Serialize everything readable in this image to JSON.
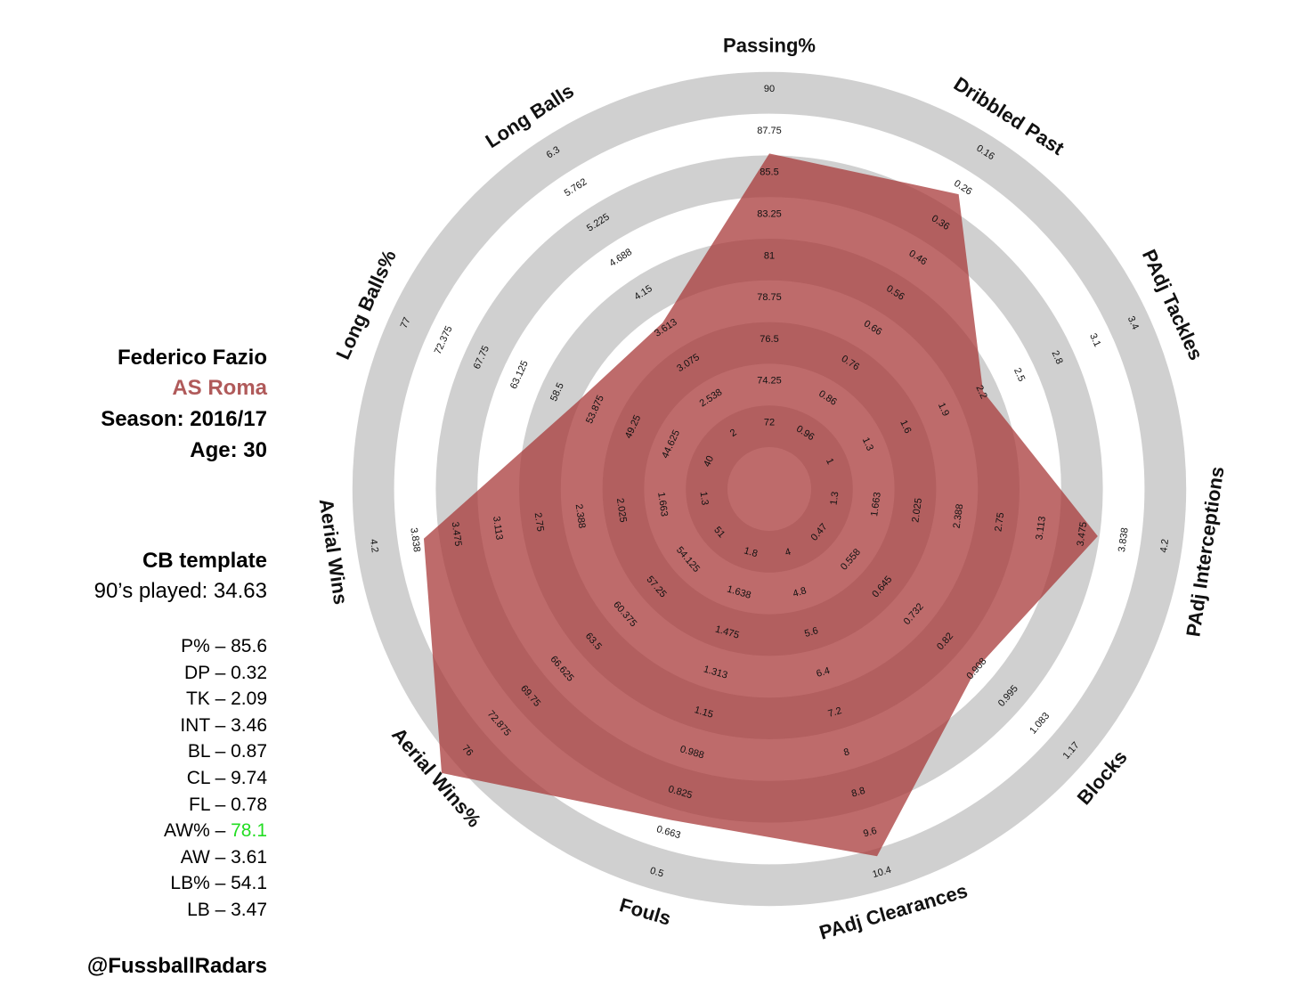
{
  "player": {
    "name": "Federico Fazio",
    "team": "AS Roma",
    "season": "Season: 2016/17",
    "age": "Age: 30",
    "template": "CB template",
    "nineties": "90’s played: 34.63",
    "handle": "@FussballRadars"
  },
  "stats": [
    {
      "label": "P% – ",
      "value": "85.6",
      "color": "#000000"
    },
    {
      "label": "DP – ",
      "value": "0.32",
      "color": "#000000"
    },
    {
      "label": "TK – ",
      "value": "2.09",
      "color": "#000000"
    },
    {
      "label": "INT – ",
      "value": "3.46",
      "color": "#000000"
    },
    {
      "label": "BL – ",
      "value": "0.87",
      "color": "#000000"
    },
    {
      "label": "CL – ",
      "value": "9.74",
      "color": "#000000"
    },
    {
      "label": "FL – ",
      "value": "0.78",
      "color": "#000000"
    },
    {
      "label": "AW% – ",
      "value": "78.1",
      "color": "#22dd22"
    },
    {
      "label": "AW – ",
      "value": "3.61",
      "color": "#000000"
    },
    {
      "label": "LB% – ",
      "value": "54.1",
      "color": "#000000"
    },
    {
      "label": "LB – ",
      "value": "3.47",
      "color": "#000000"
    }
  ],
  "colors": {
    "fill": "#a83a3a",
    "ring_light": "#d0d0d0",
    "ring_dark": "#a8a8a8",
    "team": "#b05a5a"
  },
  "chart_data": {
    "type": "radar",
    "axes": [
      {
        "label": "Passing%",
        "ticks": [
          "72",
          "74.25",
          "76.5",
          "78.75",
          "81",
          "83.25",
          "85.5",
          "87.75",
          "90"
        ],
        "value": 85.6
      },
      {
        "label": "Dribbled Past",
        "ticks": [
          "0.96",
          "0.86",
          "0.76",
          "0.66",
          "0.56",
          "0.46",
          "0.36",
          "0.26",
          "0.16"
        ],
        "value": 0.32
      },
      {
        "label": "PAdj Tackles",
        "ticks": [
          "1",
          "1.3",
          "1.6",
          "1.9",
          "2.2",
          "2.5",
          "2.8",
          "3.1",
          "3.4"
        ],
        "value": 2.09
      },
      {
        "label": "PAdj Interceptions",
        "ticks": [
          "1.3",
          "1.663",
          "2.025",
          "2.388",
          "2.75",
          "3.113",
          "3.475",
          "3.838",
          "4.2"
        ],
        "value": 3.46
      },
      {
        "label": "Blocks",
        "ticks": [
          "0.47",
          "0.558",
          "0.645",
          "0.732",
          "0.82",
          "0.908",
          "0.995",
          "1.083",
          "1.17"
        ],
        "value": 0.87
      },
      {
        "label": "PAdj Clearances",
        "ticks": [
          "4",
          "4.8",
          "5.6",
          "6.4",
          "7.2",
          "8",
          "8.8",
          "9.6",
          "10.4"
        ],
        "value": 9.74
      },
      {
        "label": "Fouls",
        "ticks": [
          "1.8",
          "1.638",
          "1.475",
          "1.313",
          "1.15",
          "0.988",
          "0.825",
          "0.663",
          "0.5"
        ],
        "value": 0.78
      },
      {
        "label": "Aerial Wins%",
        "ticks": [
          "51",
          "54.125",
          "57.25",
          "60.375",
          "63.5",
          "66.625",
          "69.75",
          "72.875",
          "76"
        ],
        "value": 78.1
      },
      {
        "label": "Aerial Wins",
        "ticks": [
          "1.3",
          "1.663",
          "2.025",
          "2.388",
          "2.75",
          "3.113",
          "3.475",
          "3.838",
          "4.2"
        ],
        "value": 3.61
      },
      {
        "label": "Long Balls%",
        "ticks": [
          "40",
          "44.625",
          "49.25",
          "53.875",
          "58.5",
          "63.125",
          "67.75",
          "72.375",
          "77"
        ],
        "value": 54.1
      },
      {
        "label": "Long Balls",
        "ticks": [
          "2",
          "2.538",
          "3.075",
          "3.613",
          "4.15",
          "4.688",
          "5.225",
          "5.762",
          "6.3"
        ],
        "value": 3.47
      }
    ]
  }
}
